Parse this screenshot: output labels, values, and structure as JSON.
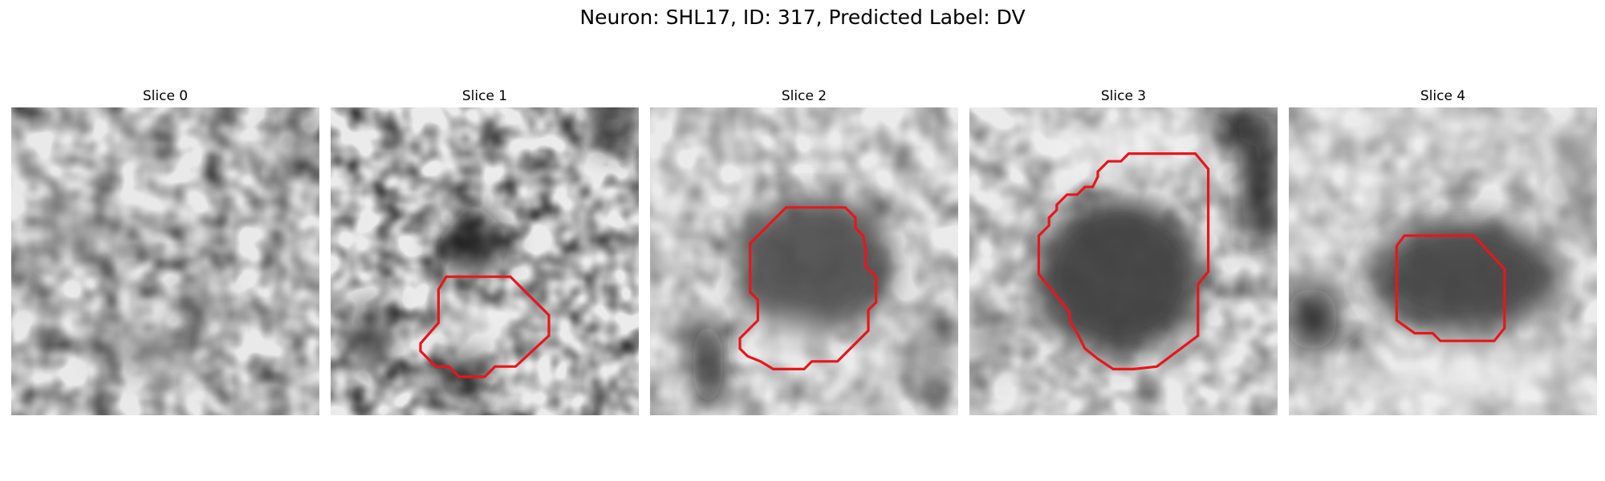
{
  "figure": {
    "title": "Neuron: SHL17, ID: 317, Predicted Label: DV"
  },
  "panels": [
    {
      "title": "Slice 0",
      "has_outline": false
    },
    {
      "title": "Slice 1",
      "has_outline": true
    },
    {
      "title": "Slice 2",
      "has_outline": true
    },
    {
      "title": "Slice 3",
      "has_outline": true
    },
    {
      "title": "Slice 4",
      "has_outline": true
    }
  ],
  "colors": {
    "outline": "#e8161b",
    "image_colormap": "grayscale"
  }
}
